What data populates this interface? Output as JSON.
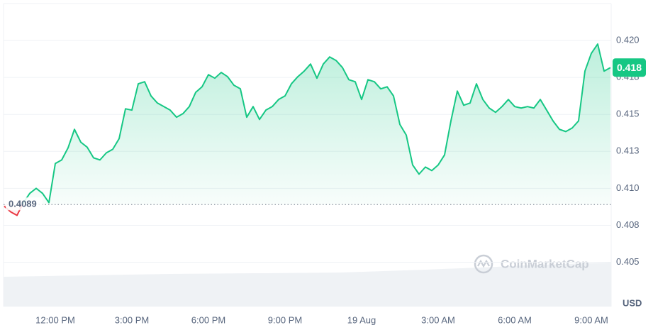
{
  "chart_data": {
    "type": "line",
    "categories": [
      null,
      null,
      null,
      null,
      null,
      null,
      null,
      null,
      "12:00 PM",
      null,
      null,
      null,
      null,
      null,
      null,
      null,
      null,
      null,
      null,
      null,
      "3:00 PM",
      null,
      null,
      null,
      null,
      null,
      null,
      null,
      null,
      null,
      null,
      null,
      "6:00 PM",
      null,
      null,
      null,
      null,
      null,
      null,
      null,
      null,
      null,
      null,
      null,
      "9:00 PM",
      null,
      null,
      null,
      null,
      null,
      null,
      null,
      null,
      null,
      null,
      null,
      "19 Aug",
      null,
      null,
      null,
      null,
      null,
      null,
      null,
      null,
      null,
      null,
      null,
      "3:00 AM",
      null,
      null,
      null,
      null,
      null,
      null,
      null,
      null,
      null,
      null,
      null,
      "6:00 AM",
      null,
      null,
      null,
      null,
      null,
      null,
      null,
      null,
      null,
      null,
      null,
      "9:00 AM",
      null,
      null,
      null
    ],
    "series": [
      {
        "color": "#16c784",
        "down_color": "#ea3943",
        "values": [
          0.40879,
          0.40841,
          0.40817,
          0.40903,
          0.40966,
          0.41,
          0.40966,
          0.40903,
          0.41168,
          0.41192,
          0.41274,
          0.41399,
          0.41312,
          0.41278,
          0.41206,
          0.41192,
          0.4124,
          0.41264,
          0.41336,
          0.41538,
          0.41529,
          0.41707,
          0.41721,
          0.41625,
          0.41577,
          0.41553,
          0.41529,
          0.41481,
          0.41505,
          0.41553,
          0.41649,
          0.41687,
          0.41769,
          0.41745,
          0.41784,
          0.41755,
          0.41697,
          0.41673,
          0.41481,
          0.41553,
          0.41466,
          0.41529,
          0.41553,
          0.41601,
          0.41625,
          0.41707,
          0.41755,
          0.41793,
          0.41841,
          0.41745,
          0.41841,
          0.41889,
          0.41865,
          0.41817,
          0.41735,
          0.41721,
          0.41601,
          0.41735,
          0.41721,
          0.41673,
          0.41687,
          0.41625,
          0.41432,
          0.4136,
          0.41158,
          0.41096,
          0.41144,
          0.4112,
          0.41158,
          0.41226,
          0.41456,
          0.41658,
          0.41562,
          0.41577,
          0.41707,
          0.41601,
          0.41543,
          0.41514,
          0.41553,
          0.41601,
          0.41553,
          0.41543,
          0.41553,
          0.41543,
          0.41601,
          0.41529,
          0.41456,
          0.41399,
          0.41384,
          0.41408,
          0.41456,
          0.41793,
          0.41913,
          0.41976,
          0.41793,
          0.41817
        ]
      }
    ],
    "baseline": 0.4089,
    "price_label": {
      "value": 0.41817,
      "label": "0.418"
    },
    "ylim": [
      0.402,
      0.4225
    ],
    "yticks": [
      0.405,
      {
        "value": 0.4075,
        "label": "0.408"
      },
      {
        "value": 0.41,
        "label": "0.410"
      },
      {
        "value": 0.4125,
        "label": "0.413"
      },
      0.415,
      {
        "value": 0.4175,
        "label": "0.418"
      },
      {
        "value": 0.42,
        "label": "0.420"
      }
    ],
    "grid": true,
    "y_unit": "USD",
    "watermark": "CoinMarketCap"
  }
}
